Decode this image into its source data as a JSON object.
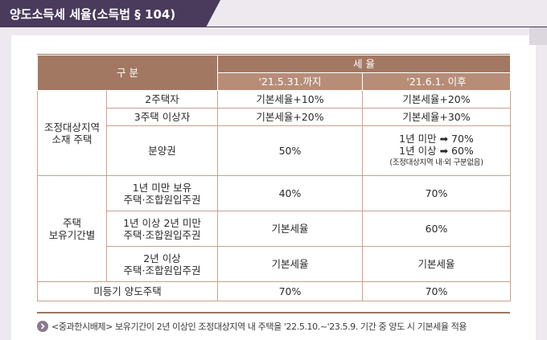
{
  "header": {
    "title": "양도소득세 세율(소득법 § 104)"
  },
  "table": {
    "head_category": "구 분",
    "head_rate": "세 율",
    "col_before": "'21.5.31.까지",
    "col_after": "'21.6.1. 이후",
    "group1": {
      "label_line1": "조정대상지역",
      "label_line2": "소재 주택"
    },
    "row_2house": {
      "label": "2주택자",
      "before": "기본세율+10%",
      "after": "기본세율+20%"
    },
    "row_3house": {
      "label": "3주택 이상자",
      "before": "기본세율+20%",
      "after": "기본세율+30%"
    },
    "row_presale": {
      "label": "분양권",
      "before": "50%",
      "after_line1": "1년 미만 ➡ 70%",
      "after_line2": "1년 이상 ➡ 60%",
      "after_note": "(조정대상지역 내·외 구분없음)"
    },
    "group2": {
      "label_line1": "주택",
      "label_line2": "보유기간별"
    },
    "row_lt1": {
      "label_line1": "1년 미만 보유",
      "label_line2": "주택·조합원입주권",
      "before": "40%",
      "after": "70%"
    },
    "row_1to2": {
      "label_line1": "1년 이상 2년 미만",
      "label_line2": "주택·조합원입주권",
      "before": "기본세율",
      "after": "60%"
    },
    "row_gt2": {
      "label_line1": "2년 이상",
      "label_line2": "주택·조합원입주권",
      "before": "기본세율",
      "after": "기본세율"
    },
    "row_unreg": {
      "label": "미등기 양도주택",
      "before": "70%",
      "after": "70%"
    }
  },
  "footnote": {
    "text": "<중과한시배제> 보유기간이 2년 이상인 조정대상지역 내 주택을 '22.5.10.~'23.5.9. 기간 중 양도 시 기본세율 적용"
  },
  "colors": {
    "header_bg": "#4a3a5c",
    "table_head": "#a37863",
    "table_subhead": "#b78d78",
    "border": "#c9a18c"
  }
}
